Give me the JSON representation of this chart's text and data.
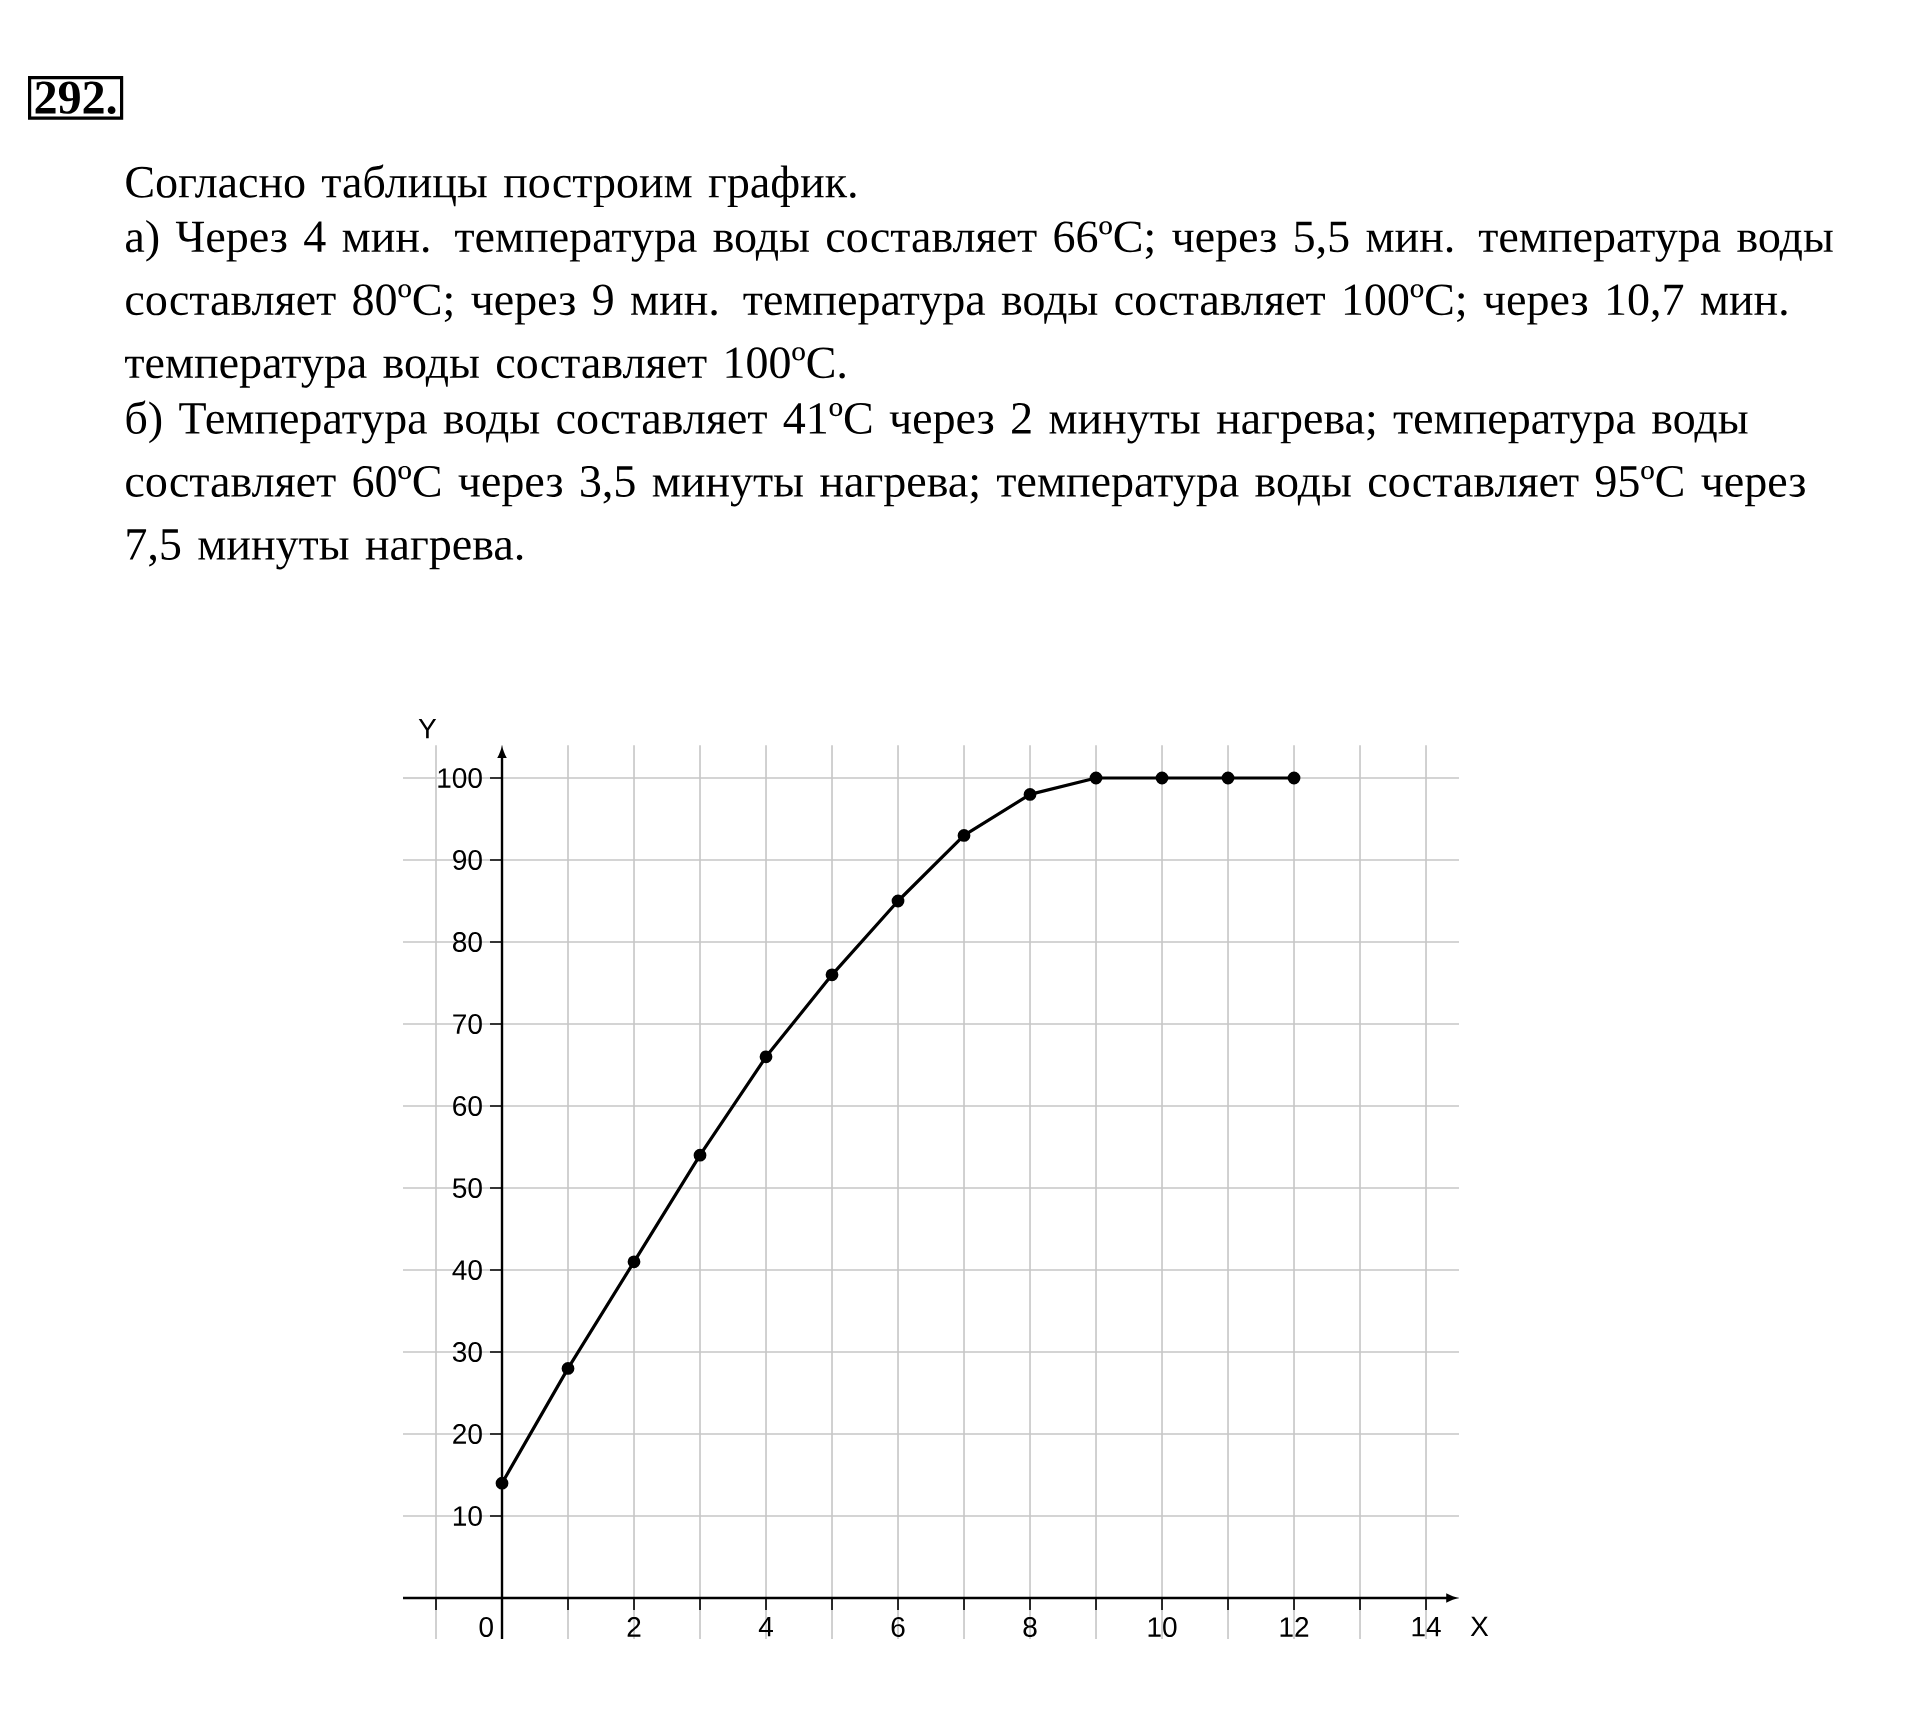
{
  "chart_data": {
    "type": "line",
    "title": "292.",
    "annotations": [
      "Согласно таблицы построим график.",
      "а)  Через 4 мин. температура воды составляет 66ºC;  через 5,5 мин. температура воды составляет 80ºC;  через 9 мин. температура воды составляет 100ºC;  через 10,7 мин. температура воды составляет 100ºC.",
      "б)  Температура воды составляет 41ºC через 2 минуты нагрева;  температура воды составляет 60ºC через 3,5 минуты нагрева;  температура воды составляет 95ºC через 7,5 минуты нагрева."
    ],
    "xlabel": "X",
    "ylabel": "Y",
    "x": [
      0,
      1,
      2,
      3,
      4,
      5,
      6,
      7,
      8,
      9,
      10,
      11,
      12
    ],
    "values": [
      14,
      28,
      41,
      54,
      66,
      76,
      85,
      93,
      98,
      100,
      100,
      100,
      100
    ],
    "color": "#000000",
    "marker": "circle",
    "line_style": "solid",
    "grid": true,
    "xlim": [
      -1.5,
      14.5
    ],
    "ylim": [
      -5,
      104
    ],
    "xticks": [
      {
        "value": -1,
        "label": null
      },
      0,
      {
        "value": 1,
        "label": null
      },
      2,
      {
        "value": 3,
        "label": null
      },
      4,
      {
        "value": 5,
        "label": null
      },
      6,
      {
        "value": 7,
        "label": null
      },
      8,
      {
        "value": 9,
        "label": null
      },
      10,
      {
        "value": 11,
        "label": null
      },
      12,
      {
        "value": 13,
        "label": null
      },
      14
    ],
    "yticks": [
      {
        "value": 0,
        "label": null
      },
      10,
      20,
      30,
      40,
      50,
      60,
      70,
      80,
      90,
      100
    ]
  }
}
